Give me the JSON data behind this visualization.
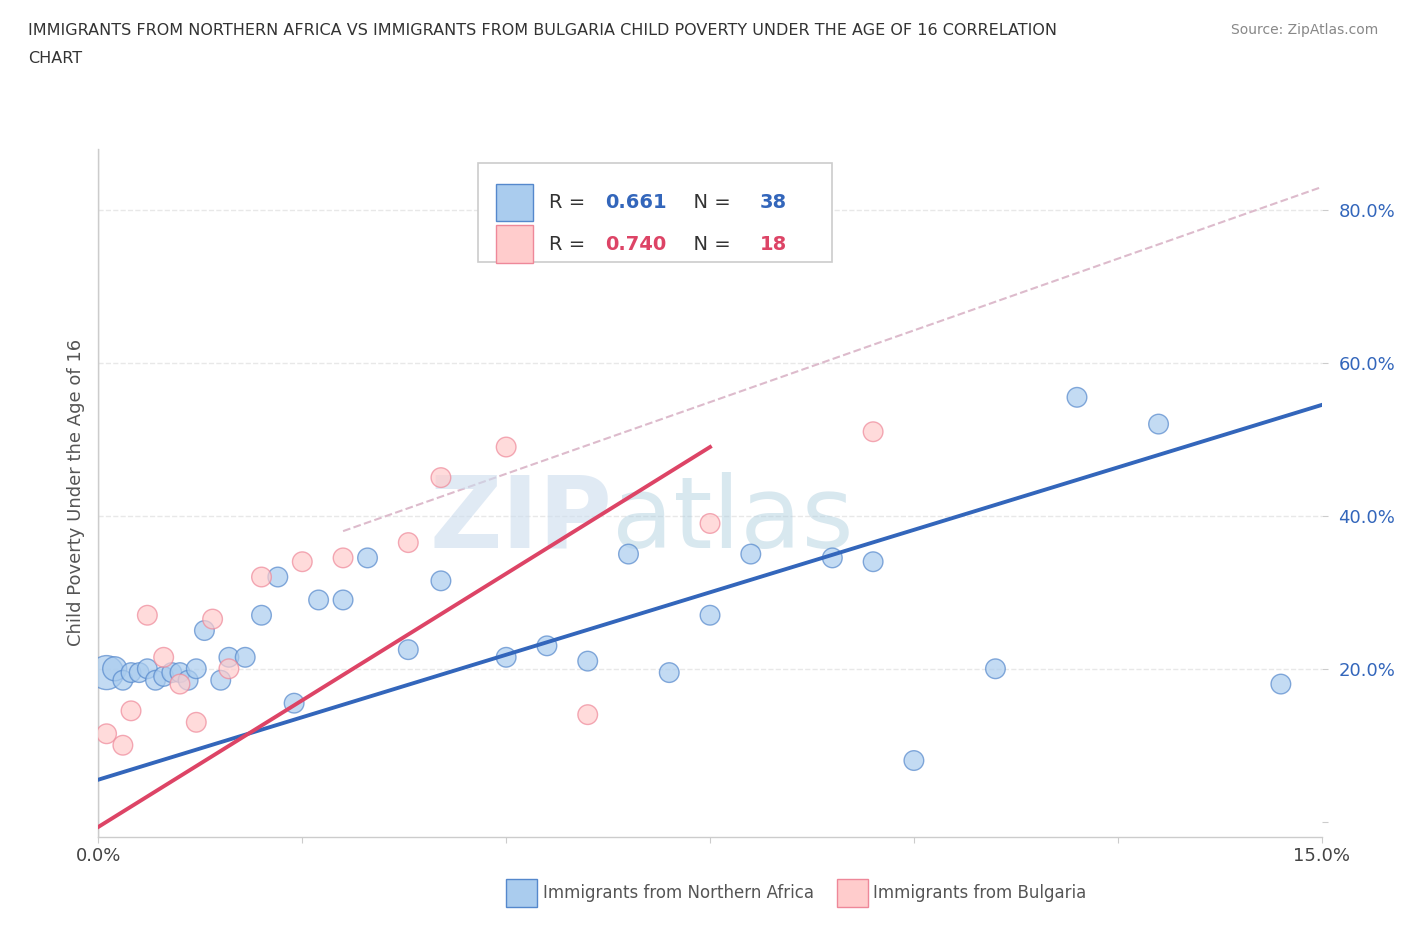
{
  "title_line1": "IMMIGRANTS FROM NORTHERN AFRICA VS IMMIGRANTS FROM BULGARIA CHILD POVERTY UNDER THE AGE OF 16 CORRELATION",
  "title_line2": "CHART",
  "source_text": "Source: ZipAtlas.com",
  "ylabel": "Child Poverty Under the Age of 16",
  "xlim": [
    0.0,
    0.15
  ],
  "ylim": [
    -0.02,
    0.88
  ],
  "yticks": [
    0.0,
    0.2,
    0.4,
    0.6,
    0.8
  ],
  "ytick_labels": [
    "",
    "20.0%",
    "40.0%",
    "60.0%",
    "80.0%"
  ],
  "xticks": [
    0.0,
    0.025,
    0.05,
    0.075,
    0.1,
    0.125,
    0.15
  ],
  "xtick_edge_labels": [
    "0.0%",
    "",
    "",
    "",
    "",
    "",
    "15.0%"
  ],
  "grid_color": "#e8e8e8",
  "watermark_zip": "ZIP",
  "watermark_atlas": "atlas",
  "blue_scatter_x": [
    0.001,
    0.002,
    0.003,
    0.004,
    0.005,
    0.006,
    0.007,
    0.008,
    0.009,
    0.01,
    0.011,
    0.012,
    0.013,
    0.015,
    0.016,
    0.018,
    0.02,
    0.022,
    0.024,
    0.027,
    0.03,
    0.033,
    0.038,
    0.042,
    0.05,
    0.055,
    0.06,
    0.065,
    0.07,
    0.075,
    0.08,
    0.09,
    0.095,
    0.1,
    0.11,
    0.12,
    0.13,
    0.145
  ],
  "blue_scatter_y": [
    0.195,
    0.2,
    0.185,
    0.195,
    0.195,
    0.2,
    0.185,
    0.19,
    0.195,
    0.195,
    0.185,
    0.2,
    0.25,
    0.185,
    0.215,
    0.215,
    0.27,
    0.32,
    0.155,
    0.29,
    0.29,
    0.345,
    0.225,
    0.315,
    0.215,
    0.23,
    0.21,
    0.35,
    0.195,
    0.27,
    0.35,
    0.345,
    0.34,
    0.08,
    0.2,
    0.555,
    0.52,
    0.18
  ],
  "blue_scatter_sizes": [
    600,
    300,
    200,
    200,
    200,
    200,
    200,
    200,
    200,
    200,
    200,
    200,
    200,
    200,
    200,
    200,
    200,
    200,
    200,
    200,
    200,
    200,
    200,
    200,
    200,
    200,
    200,
    200,
    200,
    200,
    200,
    200,
    200,
    200,
    200,
    200,
    200,
    200
  ],
  "blue_color": "#aaccee",
  "blue_edge_color": "#5588cc",
  "pink_scatter_x": [
    0.001,
    0.003,
    0.004,
    0.006,
    0.008,
    0.01,
    0.012,
    0.014,
    0.016,
    0.02,
    0.025,
    0.03,
    0.038,
    0.042,
    0.05,
    0.06,
    0.075,
    0.095
  ],
  "pink_scatter_y": [
    0.115,
    0.1,
    0.145,
    0.27,
    0.215,
    0.18,
    0.13,
    0.265,
    0.2,
    0.32,
    0.34,
    0.345,
    0.365,
    0.45,
    0.49,
    0.14,
    0.39,
    0.51
  ],
  "pink_scatter_sizes": [
    200,
    200,
    200,
    200,
    200,
    200,
    200,
    200,
    200,
    200,
    200,
    200,
    200,
    200,
    200,
    200,
    200,
    200
  ],
  "pink_color": "#ffcccc",
  "pink_edge_color": "#ee8899",
  "blue_line_x": [
    0.0,
    0.15
  ],
  "blue_line_y": [
    0.055,
    0.545
  ],
  "blue_line_color": "#3366bb",
  "pink_line_x": [
    -0.002,
    0.075
  ],
  "pink_line_y": [
    -0.02,
    0.49
  ],
  "pink_line_color": "#dd4466",
  "trend_line_x": [
    0.03,
    0.15
  ],
  "trend_line_y": [
    0.38,
    0.83
  ],
  "trend_line_color": "#ddbbcc",
  "legend_text_color": "#333333",
  "R_blue_color": "#3366bb",
  "N_blue_color": "#3366bb",
  "R_pink_color": "#dd4466",
  "N_pink_color": "#dd4466",
  "background_color": "#ffffff"
}
